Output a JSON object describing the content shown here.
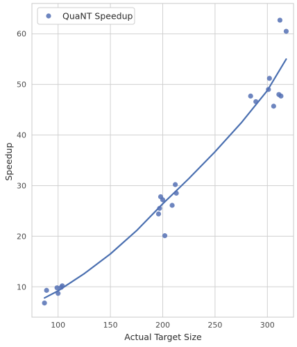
{
  "chart_data": {
    "type": "scatter",
    "title": "",
    "xlabel": "Actual Target Size",
    "ylabel": "Speedup",
    "xlim": [
      75,
      325
    ],
    "ylim": [
      4,
      66
    ],
    "xticks": [
      100,
      150,
      200,
      250,
      300
    ],
    "yticks": [
      10,
      20,
      30,
      40,
      50,
      60
    ],
    "grid": true,
    "legend": {
      "placement": "top-left",
      "entries": [
        "QuaNT Speedup"
      ]
    },
    "colors": {
      "points": "#5470b4",
      "fit_line": "#4a6fb0",
      "grid": "#d0d0d0",
      "frame": "#c8c8c8"
    },
    "series": [
      {
        "name": "QuaNT Speedup",
        "kind": "scatter",
        "points": [
          [
            87,
            6.8
          ],
          [
            89,
            9.3
          ],
          [
            99,
            9.8
          ],
          [
            100,
            8.7
          ],
          [
            103,
            9.9
          ],
          [
            104,
            10.2
          ],
          [
            196,
            24.4
          ],
          [
            197,
            25.5
          ],
          [
            198,
            27.8
          ],
          [
            200,
            27.2
          ],
          [
            202,
            20.1
          ],
          [
            209,
            26.1
          ],
          [
            212,
            30.2
          ],
          [
            213,
            28.5
          ],
          [
            284,
            47.7
          ],
          [
            289,
            46.6
          ],
          [
            301,
            49.0
          ],
          [
            302,
            51.2
          ],
          [
            306,
            45.7
          ],
          [
            311,
            48.0
          ],
          [
            312,
            62.7
          ],
          [
            313,
            47.7
          ],
          [
            318,
            60.5
          ]
        ]
      },
      {
        "kind": "fit_curve",
        "x": [
          87,
          100,
          125,
          150,
          175,
          200,
          225,
          250,
          275,
          300,
          318
        ],
        "y": [
          7.8,
          9.2,
          12.6,
          16.5,
          21.1,
          26.4,
          31.4,
          36.7,
          42.4,
          48.8,
          55.0
        ]
      }
    ]
  }
}
